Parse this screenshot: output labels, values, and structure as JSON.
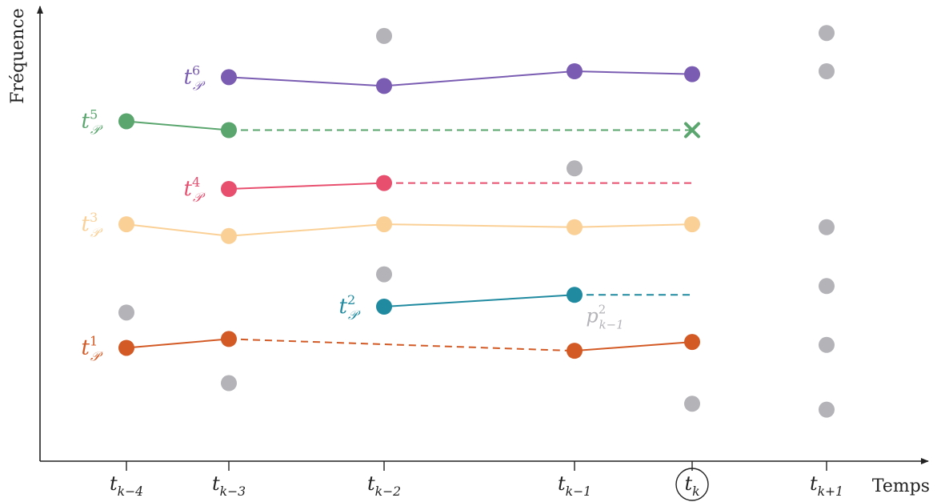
{
  "axes": {
    "y_label": "Fréquence",
    "x_label": "Temps",
    "x_ticks": [
      {
        "id": "tk-4",
        "base": "t",
        "sub": "k−4",
        "highlighted": false
      },
      {
        "id": "tk-3",
        "base": "t",
        "sub": "k−3",
        "highlighted": false
      },
      {
        "id": "tk-2",
        "base": "t",
        "sub": "k−2",
        "highlighted": false
      },
      {
        "id": "tk-1",
        "base": "t",
        "sub": "k−1",
        "highlighted": false
      },
      {
        "id": "tk",
        "base": "t",
        "sub": "k",
        "highlighted": true
      },
      {
        "id": "tk+1",
        "base": "t",
        "sub": "k+1",
        "highlighted": false
      }
    ]
  },
  "colors": {
    "track1": "#d35a25",
    "track2": "#1f8aa0",
    "track3": "#fbd096",
    "track4": "#e84f6f",
    "track5": "#5aa66e",
    "track6": "#7a5db2",
    "unassigned": "#b3b3b8",
    "axis": "#222222"
  },
  "tracks": [
    {
      "id": 1,
      "label": {
        "base": "t",
        "sub": "𝒫",
        "sup": "1"
      },
      "color_key": "track1",
      "points": [
        {
          "t": 0,
          "f": 1.3
        },
        {
          "t": 1,
          "f": 1.45
        },
        {
          "t": 3,
          "f": 1.25
        },
        {
          "t": 4,
          "f": 1.4
        }
      ],
      "segments": [
        {
          "from": 0,
          "to": 1,
          "style": "solid"
        },
        {
          "from": 1,
          "to": 2,
          "style": "dashed"
        },
        {
          "from": 2,
          "to": 3,
          "style": "solid"
        }
      ],
      "predicted_end": null,
      "lost_marker": null
    },
    {
      "id": 2,
      "label": {
        "base": "t",
        "sub": "𝒫",
        "sup": "2"
      },
      "color_key": "track2",
      "points": [
        {
          "t": 2,
          "f": 2.0
        },
        {
          "t": 3,
          "f": 2.2
        }
      ],
      "segments": [
        {
          "from": 0,
          "to": 1,
          "style": "solid"
        }
      ],
      "predicted_end": {
        "t": 4,
        "f": 2.2
      },
      "lost_marker": null
    },
    {
      "id": 3,
      "label": {
        "base": "t",
        "sub": "𝒫",
        "sup": "3"
      },
      "color_key": "track3",
      "points": [
        {
          "t": 0,
          "f": 3.4
        },
        {
          "t": 1,
          "f": 3.2
        },
        {
          "t": 2,
          "f": 3.4
        },
        {
          "t": 3,
          "f": 3.35
        },
        {
          "t": 4,
          "f": 3.4
        }
      ],
      "segments": [
        {
          "from": 0,
          "to": 1,
          "style": "solid"
        },
        {
          "from": 1,
          "to": 2,
          "style": "solid"
        },
        {
          "from": 2,
          "to": 3,
          "style": "solid"
        },
        {
          "from": 3,
          "to": 4,
          "style": "solid"
        }
      ],
      "predicted_end": null,
      "lost_marker": null
    },
    {
      "id": 4,
      "label": {
        "base": "t",
        "sub": "𝒫",
        "sup": "4"
      },
      "color_key": "track4",
      "points": [
        {
          "t": 1,
          "f": 4.0
        },
        {
          "t": 2,
          "f": 4.1
        }
      ],
      "segments": [
        {
          "from": 0,
          "to": 1,
          "style": "solid"
        }
      ],
      "predicted_end": {
        "t": 4,
        "f": 4.1
      },
      "lost_marker": null
    },
    {
      "id": 5,
      "label": {
        "base": "t",
        "sub": "𝒫",
        "sup": "5"
      },
      "color_key": "track5",
      "points": [
        {
          "t": 0,
          "f": 5.15
        },
        {
          "t": 1,
          "f": 5.0
        }
      ],
      "segments": [
        {
          "from": 0,
          "to": 1,
          "style": "solid"
        }
      ],
      "predicted_end": {
        "t": 4,
        "f": 5.0
      },
      "lost_marker": {
        "t": 4,
        "f": 5.0
      }
    },
    {
      "id": 6,
      "label": {
        "base": "t",
        "sub": "𝒫",
        "sup": "6"
      },
      "color_key": "track6",
      "points": [
        {
          "t": 1,
          "f": 5.9
        },
        {
          "t": 2,
          "f": 5.75
        },
        {
          "t": 3,
          "f": 6.0
        },
        {
          "t": 4,
          "f": 5.95
        }
      ],
      "segments": [
        {
          "from": 0,
          "to": 1,
          "style": "solid"
        },
        {
          "from": 1,
          "to": 2,
          "style": "solid"
        },
        {
          "from": 2,
          "to": 3,
          "style": "solid"
        }
      ],
      "predicted_end": null,
      "lost_marker": null
    }
  ],
  "unassigned_points": [
    {
      "t": 0,
      "f": 1.9
    },
    {
      "t": 1,
      "f": 0.7
    },
    {
      "t": 2,
      "f": 2.55
    },
    {
      "t": 2,
      "f": 6.6
    },
    {
      "t": 3,
      "f": 4.35
    },
    {
      "t": 4,
      "f": 0.35
    },
    {
      "t": 5,
      "f": 6.65
    },
    {
      "t": 5,
      "f": 6.0
    },
    {
      "t": 5,
      "f": 3.35
    },
    {
      "t": 5,
      "f": 2.35
    },
    {
      "t": 5,
      "f": 1.35
    },
    {
      "t": 5,
      "f": 0.25
    }
  ],
  "annotations": [
    {
      "id": "p-k-1-2",
      "base": "p",
      "sub": "k−1",
      "sup": "2",
      "t": 3,
      "f": 2.2,
      "color_key": "unassigned"
    }
  ]
}
